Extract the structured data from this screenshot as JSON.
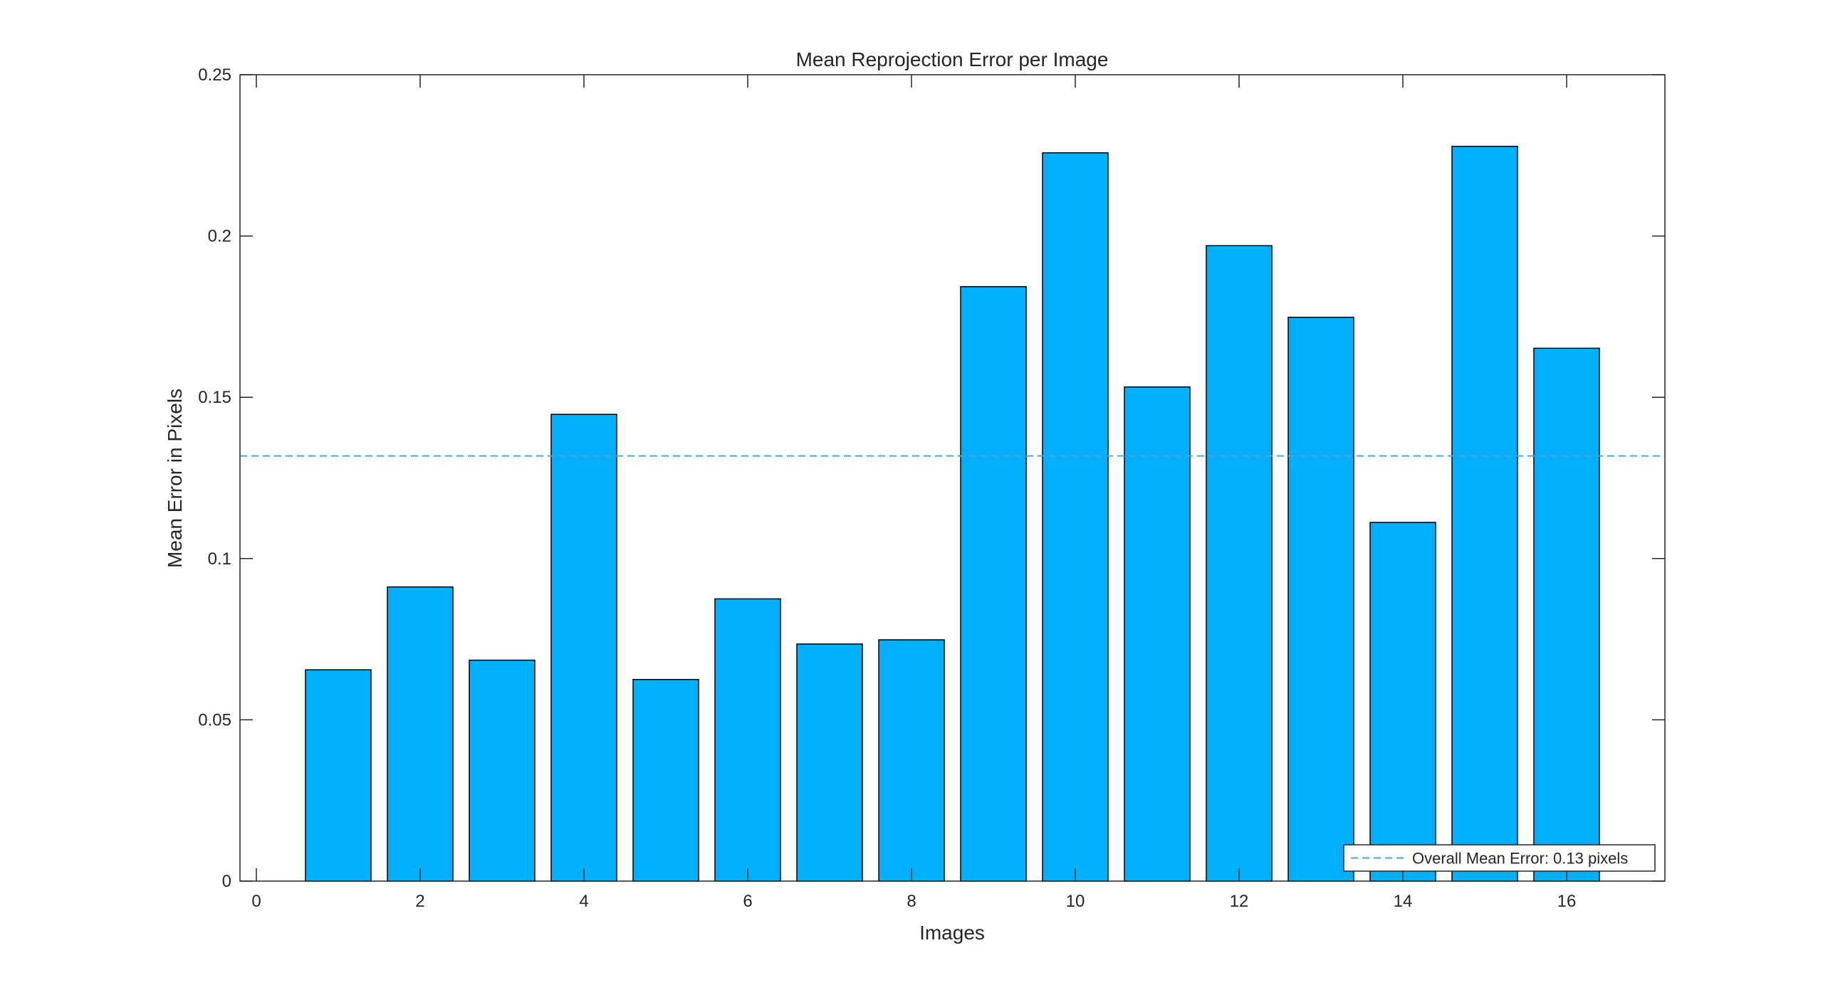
{
  "chart_data": {
    "type": "bar",
    "title": "Mean Reprojection Error per Image",
    "xlabel": "Images",
    "ylabel": "Mean Error in Pixels",
    "x": [
      1,
      2,
      3,
      4,
      5,
      6,
      7,
      8,
      9,
      10,
      11,
      12,
      13,
      14,
      15,
      16
    ],
    "values": [
      0.0655,
      0.0912,
      0.0685,
      0.1447,
      0.0625,
      0.0875,
      0.0735,
      0.0748,
      0.1843,
      0.2258,
      0.1532,
      0.197,
      0.1748,
      0.1112,
      0.2278,
      0.1652
    ],
    "xlim": [
      -0.2,
      17.2
    ],
    "ylim": [
      0,
      0.25
    ],
    "xticks": [
      "0",
      "2",
      "4",
      "6",
      "8",
      "10",
      "12",
      "14",
      "16"
    ],
    "yticks": [
      "0",
      "0.05",
      "0.1",
      "0.15",
      "0.2",
      "0.25"
    ],
    "mean_line": {
      "value": 0.1318,
      "label": "Overall Mean Error: 0.13 pixels",
      "style": "dashed"
    },
    "legend_position": "bottom-right",
    "grid": false,
    "colors": {
      "bar_fill": "#00B0FF",
      "bar_edge": "#000000",
      "mean_line": "#4DA6DB",
      "axes": "#262626"
    }
  }
}
